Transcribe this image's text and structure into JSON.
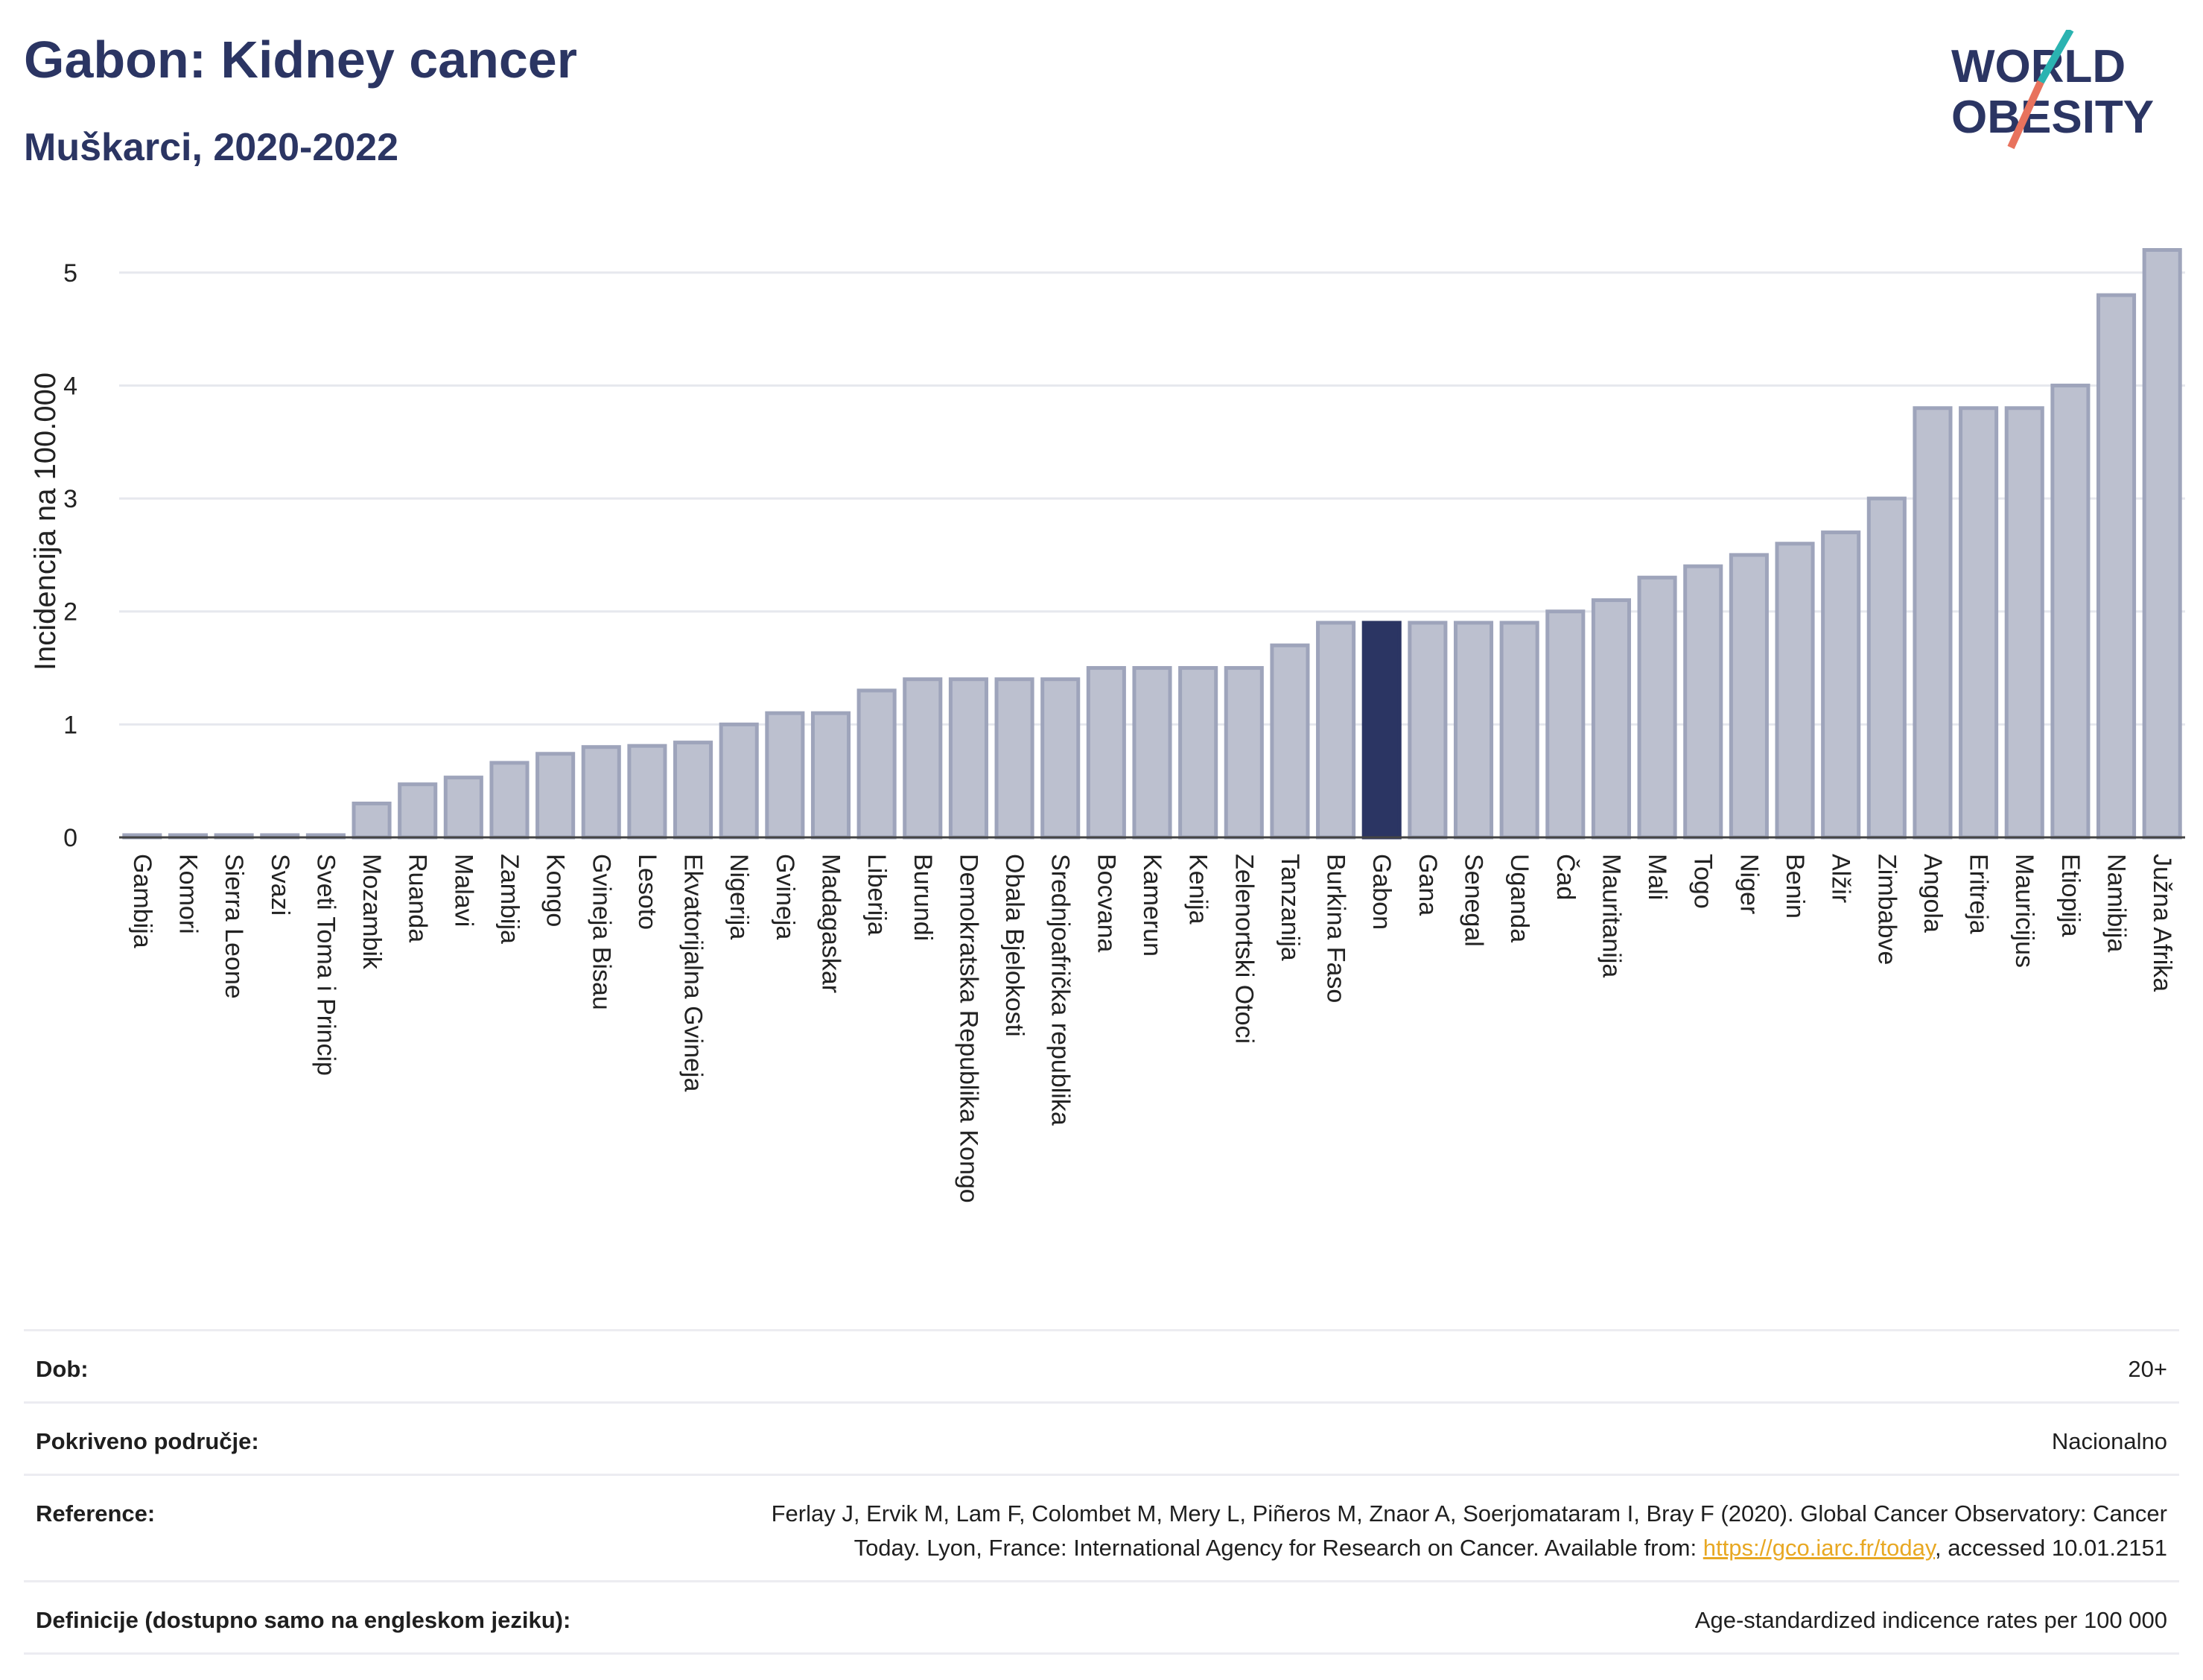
{
  "header": {
    "title": "Gabon: Kidney cancer",
    "subtitle": "Muškarci, 2020-2022",
    "logo_line1": "WORLD",
    "logo_line2": "OBESITY"
  },
  "colors": {
    "title": "#2b3563",
    "bar": "#bcc0cf",
    "bar_border": "#9ea4bb",
    "highlight": "#2b3563",
    "link": "#e8a823",
    "logo_teal": "#2bb3b1",
    "logo_coral": "#e8725d"
  },
  "chart_data": {
    "type": "bar",
    "ylabel": "Incidencija na 100.000",
    "ylim": [
      0,
      5.5
    ],
    "yticks": [
      0,
      1,
      2,
      3,
      4,
      5
    ],
    "grid": true,
    "highlight": "Gabon",
    "categories": [
      "Gambija",
      "Komori",
      "Sierra Leone",
      "Svazi",
      "Sveti Toma i Princip",
      "Mozambik",
      "Ruanda",
      "Malavi",
      "Zambija",
      "Kongo",
      "Gvineja Bisau",
      "Lesoto",
      "Ekvatorijalna Gvineja",
      "Nigerija",
      "Gvineja",
      "Madagaskar",
      "Liberija",
      "Burundi",
      "Demokratska Republika Kongo",
      "Obala Bjelokosti",
      "Srednjoafrička republika",
      "Bocvana",
      "Kamerun",
      "Kenija",
      "Zelenortski Otoci",
      "Tanzanija",
      "Burkina Faso",
      "Gabon",
      "Gana",
      "Senegal",
      "Uganda",
      "Čad",
      "Mauritanija",
      "Mali",
      "Togo",
      "Niger",
      "Benin",
      "Alžir",
      "Zimbabve",
      "Angola",
      "Eritreja",
      "Mauricijus",
      "Etiopija",
      "Namibija",
      "Južna Afrika"
    ],
    "values": [
      0.02,
      0.02,
      0.02,
      0.02,
      0.02,
      0.3,
      0.47,
      0.53,
      0.66,
      0.74,
      0.8,
      0.81,
      0.84,
      1.0,
      1.1,
      1.1,
      1.3,
      1.4,
      1.4,
      1.4,
      1.4,
      1.5,
      1.5,
      1.5,
      1.5,
      1.7,
      1.9,
      1.9,
      1.9,
      1.9,
      1.9,
      2.0,
      2.1,
      2.3,
      2.4,
      2.5,
      2.6,
      2.7,
      3.0,
      3.8,
      3.8,
      3.8,
      4.0,
      4.8,
      5.2
    ]
  },
  "info": {
    "rows": [
      {
        "label": "Dob:",
        "value": "20+"
      },
      {
        "label": "Pokriveno područje:",
        "value": "Nacionalno"
      },
      {
        "label": "Reference:",
        "value_line1": "Ferlay J, Ervik M, Lam F, Colombet M, Mery L, Piñeros M, Znaor A, Soerjomataram I, Bray F (2020). Global Cancer Observatory: Cancer",
        "value_line2_pre": "Today. Lyon, France: International Agency for Research on Cancer. Available from: ",
        "link": "https://gco.iarc.fr/today",
        "value_line2_post": ", accessed 10.01.2151"
      },
      {
        "label": "Definicije (dostupno samo na engleskom jeziku):",
        "value": "Age-standardized indicence rates per 100 000"
      }
    ]
  }
}
